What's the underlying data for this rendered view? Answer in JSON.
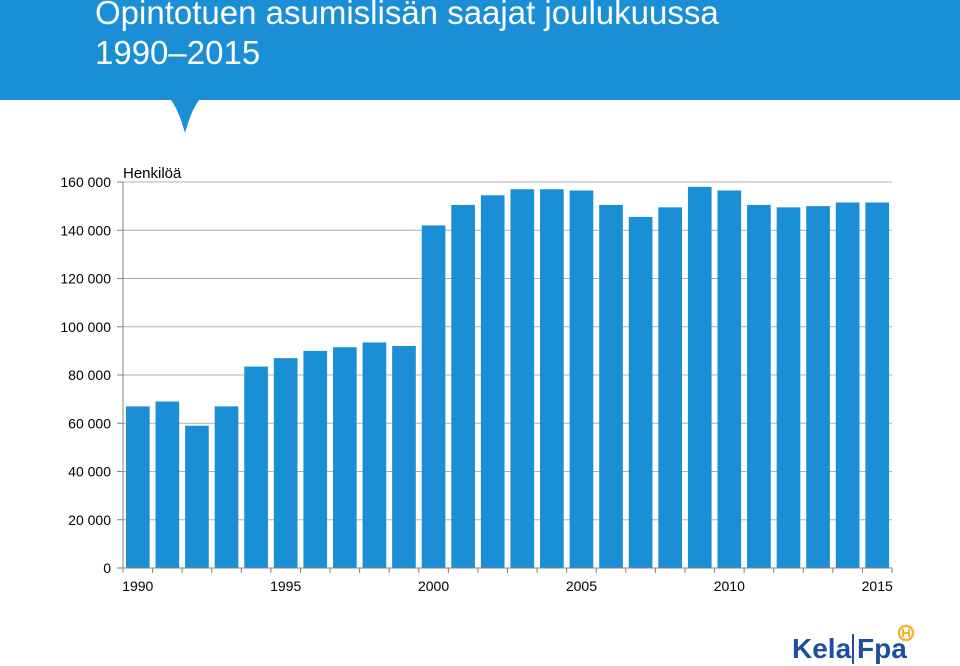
{
  "header": {
    "title_line_1": "Opintotuen asumislisän saajat joulukuussa",
    "title_line_2": "1990–2015",
    "background_color": "#1a8fd6"
  },
  "chart_data": {
    "type": "bar",
    "title": "Opintotuen asumislisän saajat joulukuussa 1990–2015",
    "ylabel": "Henkilöä",
    "xlabel": "",
    "categories": [
      "1990",
      "1991",
      "1992",
      "1993",
      "1994",
      "1995",
      "1996",
      "1997",
      "1998",
      "1999",
      "2000",
      "2001",
      "2002",
      "2003",
      "2004",
      "2005",
      "2006",
      "2007",
      "2008",
      "2009",
      "2010",
      "2011",
      "2012",
      "2013",
      "2014",
      "2015"
    ],
    "x_tick_labels": [
      "1990",
      "1995",
      "2000",
      "2005",
      "2010",
      "2015"
    ],
    "values": [
      67000,
      69000,
      59000,
      67000,
      83500,
      87000,
      90000,
      91500,
      93500,
      92000,
      142000,
      150500,
      154500,
      157000,
      157000,
      156500,
      150500,
      145500,
      149500,
      158000,
      156500,
      150500,
      149500,
      150000,
      151500,
      151500
    ],
    "ylim": [
      0,
      160000
    ],
    "y_ticks": [
      0,
      20000,
      40000,
      60000,
      80000,
      100000,
      120000,
      140000,
      160000
    ],
    "y_tick_labels": [
      "0",
      "20 000",
      "40 000",
      "60 000",
      "80 000",
      "100 000",
      "120 000",
      "140 000",
      "160 000"
    ],
    "grid": true,
    "bar_color": "#1a8fd6"
  },
  "logo": {
    "text_left": "Kela",
    "text_right": "Fpa",
    "color": "#1f4f9c",
    "badge_color": "#f5b335"
  }
}
